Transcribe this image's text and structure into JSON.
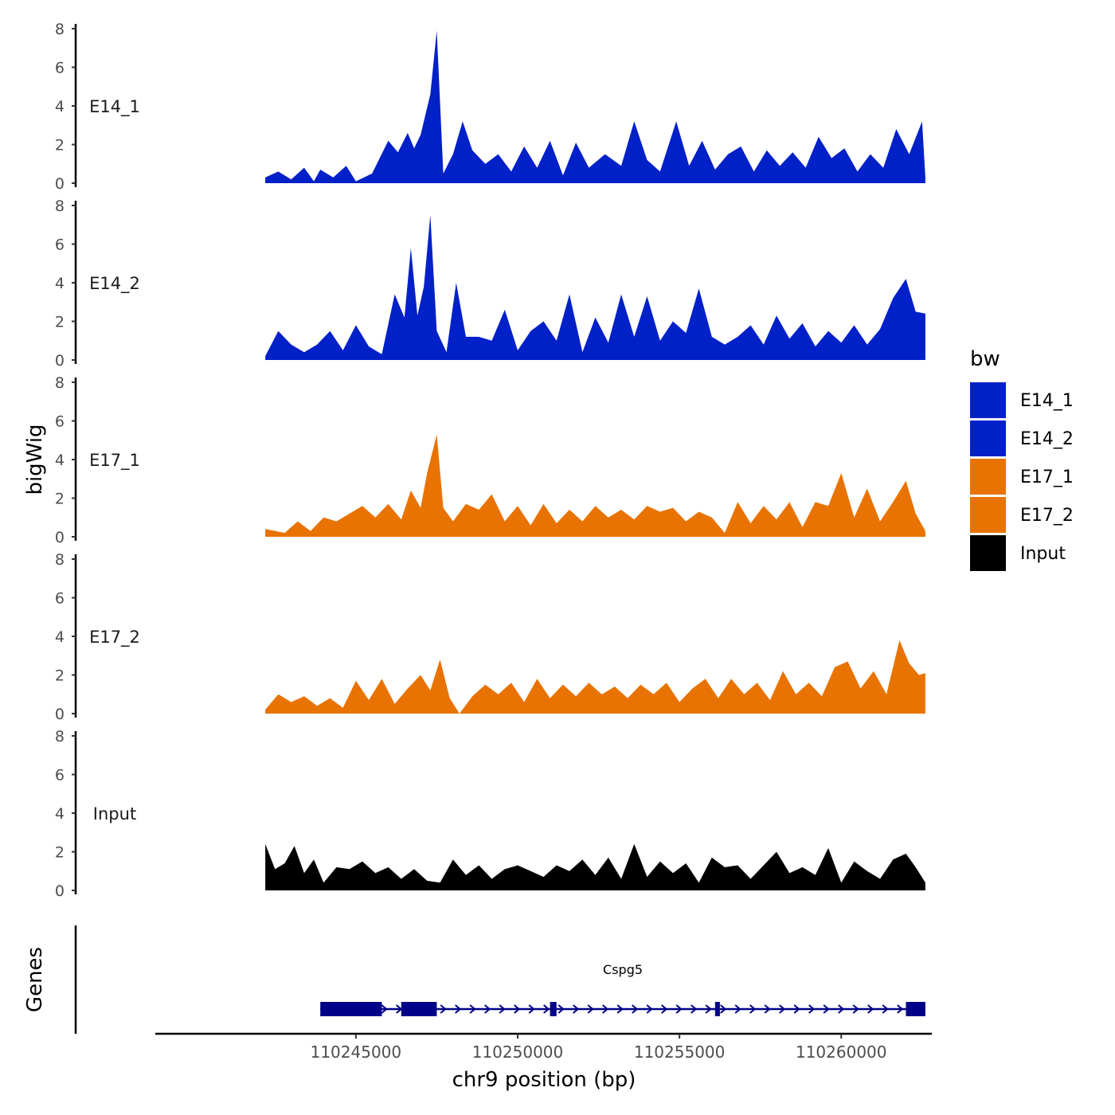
{
  "chart_data": {
    "type": "area",
    "ylabel": "bigWig",
    "xlabel": "chr9 position (bp)",
    "xlim": [
      110238800,
      110262800
    ],
    "ylim": [
      0,
      8
    ],
    "y_ticks": [
      0,
      2,
      4,
      6,
      8
    ],
    "x_ticks": [
      110245000,
      110250000,
      110255000,
      110260000
    ],
    "x_tick_labels": [
      "110245000",
      "110250000",
      "110255000",
      "110260000"
    ],
    "legend": {
      "title": "bw",
      "position": "right",
      "items": [
        {
          "label": "E14_1",
          "color": "#0020c8"
        },
        {
          "label": "E14_2",
          "color": "#0020c8"
        },
        {
          "label": "E17_1",
          "color": "#e87302"
        },
        {
          "label": "E17_2",
          "color": "#e87302"
        },
        {
          "label": "Input",
          "color": "#000000"
        }
      ]
    },
    "series": [
      {
        "name": "E14_1",
        "color": "#0020c8",
        "points": [
          [
            110242200,
            0.3
          ],
          [
            110242600,
            0.6
          ],
          [
            110243000,
            0.2
          ],
          [
            110243400,
            0.8
          ],
          [
            110243700,
            0.1
          ],
          [
            110243900,
            0.7
          ],
          [
            110244300,
            0.3
          ],
          [
            110244700,
            0.9
          ],
          [
            110245000,
            0.1
          ],
          [
            110245500,
            0.5
          ],
          [
            110246000,
            2.2
          ],
          [
            110246300,
            1.6
          ],
          [
            110246600,
            2.6
          ],
          [
            110246800,
            1.8
          ],
          [
            110247000,
            2.5
          ],
          [
            110247300,
            4.6
          ],
          [
            110247500,
            7.9
          ],
          [
            110247700,
            0.5
          ],
          [
            110248000,
            1.5
          ],
          [
            110248300,
            3.2
          ],
          [
            110248600,
            1.7
          ],
          [
            110249000,
            1.0
          ],
          [
            110249400,
            1.5
          ],
          [
            110249800,
            0.6
          ],
          [
            110250200,
            1.9
          ],
          [
            110250600,
            0.8
          ],
          [
            110251000,
            2.2
          ],
          [
            110251400,
            0.4
          ],
          [
            110251800,
            2.1
          ],
          [
            110252200,
            0.8
          ],
          [
            110252700,
            1.5
          ],
          [
            110253200,
            0.9
          ],
          [
            110253600,
            3.2
          ],
          [
            110254000,
            1.2
          ],
          [
            110254400,
            0.6
          ],
          [
            110254900,
            3.2
          ],
          [
            110255300,
            0.9
          ],
          [
            110255700,
            2.2
          ],
          [
            110256100,
            0.7
          ],
          [
            110256500,
            1.5
          ],
          [
            110256900,
            1.9
          ],
          [
            110257300,
            0.6
          ],
          [
            110257700,
            1.7
          ],
          [
            110258100,
            0.9
          ],
          [
            110258500,
            1.6
          ],
          [
            110258900,
            0.8
          ],
          [
            110259300,
            2.4
          ],
          [
            110259700,
            1.3
          ],
          [
            110260100,
            1.8
          ],
          [
            110260500,
            0.6
          ],
          [
            110260900,
            1.5
          ],
          [
            110261300,
            0.8
          ],
          [
            110261700,
            2.8
          ],
          [
            110262100,
            1.5
          ],
          [
            110262500,
            3.2
          ],
          [
            110262600,
            0.3
          ]
        ]
      },
      {
        "name": "E14_2",
        "color": "#0020c8",
        "points": [
          [
            110242200,
            0.2
          ],
          [
            110242600,
            1.5
          ],
          [
            110243000,
            0.8
          ],
          [
            110243400,
            0.4
          ],
          [
            110243800,
            0.8
          ],
          [
            110244200,
            1.5
          ],
          [
            110244600,
            0.5
          ],
          [
            110245000,
            1.8
          ],
          [
            110245400,
            0.7
          ],
          [
            110245800,
            0.3
          ],
          [
            110246200,
            3.4
          ],
          [
            110246500,
            2.2
          ],
          [
            110246700,
            5.8
          ],
          [
            110246900,
            2.3
          ],
          [
            110247100,
            3.8
          ],
          [
            110247300,
            7.5
          ],
          [
            110247500,
            1.5
          ],
          [
            110247800,
            0.4
          ],
          [
            110248100,
            4.0
          ],
          [
            110248400,
            1.2
          ],
          [
            110248800,
            1.2
          ],
          [
            110249200,
            1.0
          ],
          [
            110249600,
            2.6
          ],
          [
            110250000,
            0.5
          ],
          [
            110250400,
            1.5
          ],
          [
            110250800,
            2.0
          ],
          [
            110251200,
            1.0
          ],
          [
            110251600,
            3.4
          ],
          [
            110252000,
            0.4
          ],
          [
            110252400,
            2.2
          ],
          [
            110252800,
            0.9
          ],
          [
            110253200,
            3.4
          ],
          [
            110253600,
            1.2
          ],
          [
            110254000,
            3.3
          ],
          [
            110254400,
            1.0
          ],
          [
            110254800,
            2.0
          ],
          [
            110255200,
            1.4
          ],
          [
            110255600,
            3.7
          ],
          [
            110256000,
            1.2
          ],
          [
            110256400,
            0.8
          ],
          [
            110256800,
            1.2
          ],
          [
            110257200,
            1.8
          ],
          [
            110257600,
            0.8
          ],
          [
            110258000,
            2.3
          ],
          [
            110258400,
            1.1
          ],
          [
            110258800,
            1.9
          ],
          [
            110259200,
            0.7
          ],
          [
            110259600,
            1.5
          ],
          [
            110260000,
            0.9
          ],
          [
            110260400,
            1.8
          ],
          [
            110260800,
            0.8
          ],
          [
            110261200,
            1.6
          ],
          [
            110261600,
            3.2
          ],
          [
            110262000,
            4.2
          ],
          [
            110262300,
            2.5
          ],
          [
            110262600,
            2.4
          ]
        ]
      },
      {
        "name": "E17_1",
        "color": "#e87302",
        "points": [
          [
            110242200,
            0.4
          ],
          [
            110242800,
            0.2
          ],
          [
            110243200,
            0.8
          ],
          [
            110243600,
            0.3
          ],
          [
            110244000,
            1.0
          ],
          [
            110244400,
            0.8
          ],
          [
            110244800,
            1.2
          ],
          [
            110245200,
            1.6
          ],
          [
            110245600,
            1.0
          ],
          [
            110246000,
            1.7
          ],
          [
            110246400,
            0.9
          ],
          [
            110246700,
            2.4
          ],
          [
            110247000,
            1.5
          ],
          [
            110247200,
            3.3
          ],
          [
            110247500,
            5.3
          ],
          [
            110247700,
            1.5
          ],
          [
            110248000,
            0.8
          ],
          [
            110248400,
            1.7
          ],
          [
            110248800,
            1.4
          ],
          [
            110249200,
            2.2
          ],
          [
            110249600,
            0.8
          ],
          [
            110250000,
            1.6
          ],
          [
            110250400,
            0.6
          ],
          [
            110250800,
            1.7
          ],
          [
            110251200,
            0.7
          ],
          [
            110251600,
            1.4
          ],
          [
            110252000,
            0.8
          ],
          [
            110252400,
            1.6
          ],
          [
            110252800,
            1.0
          ],
          [
            110253200,
            1.4
          ],
          [
            110253600,
            0.9
          ],
          [
            110254000,
            1.6
          ],
          [
            110254400,
            1.3
          ],
          [
            110254800,
            1.5
          ],
          [
            110255200,
            0.8
          ],
          [
            110255600,
            1.3
          ],
          [
            110256000,
            1.0
          ],
          [
            110256400,
            0.2
          ],
          [
            110256800,
            1.8
          ],
          [
            110257200,
            0.7
          ],
          [
            110257600,
            1.6
          ],
          [
            110258000,
            0.9
          ],
          [
            110258400,
            1.8
          ],
          [
            110258800,
            0.5
          ],
          [
            110259200,
            1.8
          ],
          [
            110259600,
            1.6
          ],
          [
            110260000,
            3.3
          ],
          [
            110260400,
            1.0
          ],
          [
            110260800,
            2.5
          ],
          [
            110261200,
            0.8
          ],
          [
            110261600,
            1.8
          ],
          [
            110262000,
            2.9
          ],
          [
            110262300,
            1.2
          ],
          [
            110262600,
            0.3
          ]
        ]
      },
      {
        "name": "E17_2",
        "color": "#e87302",
        "points": [
          [
            110242200,
            0.2
          ],
          [
            110242600,
            1.0
          ],
          [
            110243000,
            0.6
          ],
          [
            110243400,
            0.9
          ],
          [
            110243800,
            0.4
          ],
          [
            110244200,
            0.8
          ],
          [
            110244600,
            0.3
          ],
          [
            110245000,
            1.7
          ],
          [
            110245400,
            0.7
          ],
          [
            110245800,
            1.8
          ],
          [
            110246200,
            0.5
          ],
          [
            110246600,
            1.3
          ],
          [
            110247000,
            2.0
          ],
          [
            110247300,
            1.2
          ],
          [
            110247600,
            2.8
          ],
          [
            110247900,
            0.8
          ],
          [
            110248200,
            0.0
          ],
          [
            110248600,
            0.9
          ],
          [
            110249000,
            1.5
          ],
          [
            110249400,
            1.0
          ],
          [
            110249800,
            1.6
          ],
          [
            110250200,
            0.6
          ],
          [
            110250600,
            1.8
          ],
          [
            110251000,
            0.8
          ],
          [
            110251400,
            1.5
          ],
          [
            110251800,
            0.9
          ],
          [
            110252200,
            1.6
          ],
          [
            110252600,
            1.0
          ],
          [
            110253000,
            1.4
          ],
          [
            110253400,
            0.8
          ],
          [
            110253800,
            1.5
          ],
          [
            110254200,
            1.0
          ],
          [
            110254600,
            1.6
          ],
          [
            110255000,
            0.6
          ],
          [
            110255400,
            1.3
          ],
          [
            110255800,
            1.8
          ],
          [
            110256200,
            0.8
          ],
          [
            110256600,
            1.8
          ],
          [
            110257000,
            1.0
          ],
          [
            110257400,
            1.6
          ],
          [
            110257800,
            0.7
          ],
          [
            110258200,
            2.2
          ],
          [
            110258600,
            1.0
          ],
          [
            110259000,
            1.6
          ],
          [
            110259400,
            0.9
          ],
          [
            110259800,
            2.4
          ],
          [
            110260200,
            2.7
          ],
          [
            110260600,
            1.3
          ],
          [
            110261000,
            2.2
          ],
          [
            110261400,
            1.0
          ],
          [
            110261800,
            3.8
          ],
          [
            110262100,
            2.6
          ],
          [
            110262400,
            2.0
          ],
          [
            110262600,
            2.1
          ]
        ]
      },
      {
        "name": "Input",
        "color": "#000000",
        "points": [
          [
            110242200,
            2.4
          ],
          [
            110242500,
            1.1
          ],
          [
            110242800,
            1.4
          ],
          [
            110243100,
            2.3
          ],
          [
            110243400,
            0.9
          ],
          [
            110243700,
            1.6
          ],
          [
            110244000,
            0.4
          ],
          [
            110244400,
            1.2
          ],
          [
            110244800,
            1.1
          ],
          [
            110245200,
            1.5
          ],
          [
            110245600,
            0.9
          ],
          [
            110246000,
            1.2
          ],
          [
            110246400,
            0.6
          ],
          [
            110246800,
            1.1
          ],
          [
            110247200,
            0.5
          ],
          [
            110247600,
            0.4
          ],
          [
            110248000,
            1.6
          ],
          [
            110248400,
            0.8
          ],
          [
            110248800,
            1.3
          ],
          [
            110249200,
            0.6
          ],
          [
            110249600,
            1.1
          ],
          [
            110250000,
            1.3
          ],
          [
            110250400,
            1.0
          ],
          [
            110250800,
            0.7
          ],
          [
            110251200,
            1.3
          ],
          [
            110251600,
            1.0
          ],
          [
            110252000,
            1.6
          ],
          [
            110252400,
            0.8
          ],
          [
            110252800,
            1.7
          ],
          [
            110253200,
            0.6
          ],
          [
            110253600,
            2.4
          ],
          [
            110254000,
            0.7
          ],
          [
            110254400,
            1.5
          ],
          [
            110254800,
            0.9
          ],
          [
            110255200,
            1.4
          ],
          [
            110255600,
            0.4
          ],
          [
            110256000,
            1.7
          ],
          [
            110256400,
            1.2
          ],
          [
            110256800,
            1.3
          ],
          [
            110257200,
            0.6
          ],
          [
            110257600,
            1.3
          ],
          [
            110258000,
            2.0
          ],
          [
            110258400,
            0.9
          ],
          [
            110258800,
            1.2
          ],
          [
            110259200,
            0.8
          ],
          [
            110259600,
            2.2
          ],
          [
            110260000,
            0.4
          ],
          [
            110260400,
            1.5
          ],
          [
            110260800,
            1.0
          ],
          [
            110261200,
            0.6
          ],
          [
            110261600,
            1.6
          ],
          [
            110262000,
            1.9
          ],
          [
            110262300,
            1.2
          ],
          [
            110262600,
            0.4
          ]
        ]
      }
    ],
    "genes": {
      "label": "Genes",
      "items": [
        {
          "name": "Cspg5",
          "color": "#000088",
          "strand": "+",
          "start": 110243900,
          "end": 110262600,
          "exons": [
            [
              110243900,
              110245800
            ],
            [
              110246400,
              110247500
            ],
            [
              110251000,
              110251200
            ],
            [
              110256100,
              110256250
            ],
            [
              110262000,
              110262600
            ]
          ]
        }
      ]
    }
  }
}
